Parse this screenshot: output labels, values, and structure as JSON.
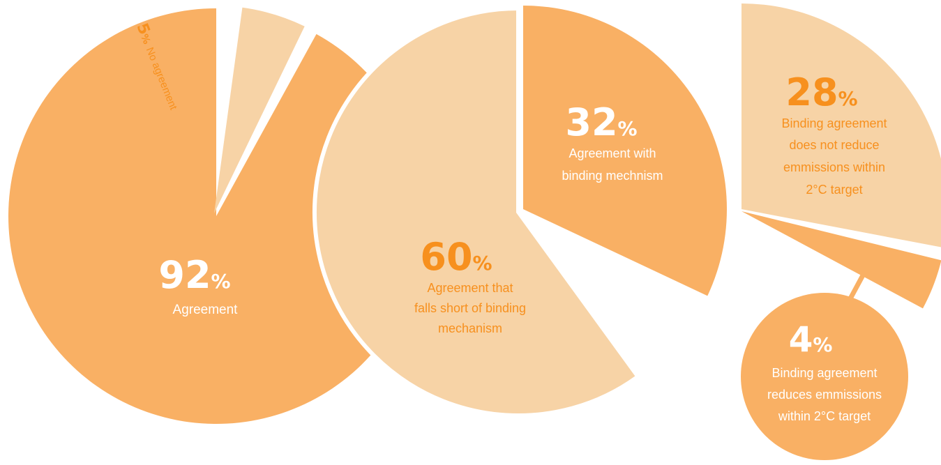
{
  "colors": {
    "dark_slice": "#F9B064",
    "light_slice": "#F7D3A6",
    "accent_text": "#F7901E",
    "white_text": "#FFFFFF",
    "separator": "#FFFFFF"
  },
  "chart_data": [
    {
      "type": "pie",
      "categories": [
        "Agreement",
        "No agreement"
      ],
      "values": [
        92,
        5
      ],
      "unit": "%",
      "labels": [
        {
          "value": "92",
          "unit": "%",
          "lines": [
            "Agreement"
          ]
        },
        {
          "value": "5",
          "unit": "%",
          "lines": [
            "No agreement"
          ]
        }
      ]
    },
    {
      "type": "pie",
      "categories": [
        "Agreement that falls short of binding mechanism",
        "Agreement with binding mechnism"
      ],
      "values": [
        60,
        32
      ],
      "unit": "%",
      "labels": [
        {
          "value": "60",
          "unit": "%",
          "lines": [
            "Agreement that",
            "falls short of binding",
            "mechanism"
          ]
        },
        {
          "value": "32",
          "unit": "%",
          "lines": [
            "Agreement with",
            "binding mechnism"
          ]
        }
      ]
    },
    {
      "type": "pie",
      "categories": [
        "Binding agreement does not reduce emmissions within 2°C target",
        "Binding agreement reduces emmissions within 2°C target"
      ],
      "values": [
        28,
        4
      ],
      "unit": "%",
      "labels": [
        {
          "value": "28",
          "unit": "%",
          "lines": [
            "Binding agreement",
            "does not reduce",
            "emmissions within",
            "2°C target"
          ]
        },
        {
          "value": "4",
          "unit": "%",
          "lines": [
            "Binding agreement",
            "reduces emmissions",
            "within 2°C target"
          ]
        }
      ]
    }
  ]
}
